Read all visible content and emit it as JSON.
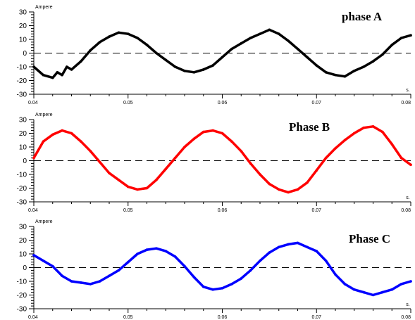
{
  "chart_data": [
    {
      "type": "line",
      "title": "phase A",
      "ylabel": "Ampere",
      "xunit": "s.",
      "xlim": [
        0.04,
        0.08
      ],
      "ylim": [
        -30,
        30
      ],
      "xticks": [
        "0.04",
        "0.05",
        "0.06",
        "0.07",
        "0.08"
      ],
      "yticks": [
        "30",
        "20",
        "10",
        "0",
        "-10",
        "-20",
        "-30"
      ],
      "zero_line": "dashed",
      "series": [
        {
          "color": "#000000",
          "x": [
            0.04,
            0.041,
            0.042,
            0.0425,
            0.043,
            0.0435,
            0.044,
            0.045,
            0.046,
            0.047,
            0.048,
            0.049,
            0.05,
            0.051,
            0.052,
            0.053,
            0.054,
            0.055,
            0.056,
            0.057,
            0.058,
            0.059,
            0.06,
            0.061,
            0.062,
            0.063,
            0.064,
            0.065,
            0.066,
            0.067,
            0.068,
            0.069,
            0.07,
            0.071,
            0.072,
            0.073,
            0.074,
            0.075,
            0.076,
            0.077,
            0.078,
            0.079,
            0.08
          ],
          "y": [
            -10,
            -16,
            -18,
            -14,
            -16,
            -10,
            -12,
            -6,
            2,
            8,
            12,
            15,
            14,
            11,
            6,
            0,
            -5,
            -10,
            -13,
            -14,
            -12,
            -9,
            -3,
            3,
            7,
            11,
            14,
            17,
            14,
            9,
            3,
            -3,
            -9,
            -14,
            -16,
            -17,
            -13,
            -10,
            -6,
            -1,
            6,
            11,
            13
          ]
        }
      ]
    },
    {
      "type": "line",
      "title": "Phase B",
      "ylabel": "Ampere",
      "xunit": "s.",
      "xlim": [
        0.04,
        0.08
      ],
      "ylim": [
        -30,
        30
      ],
      "xticks": [
        "0.04",
        "0.05",
        "0.06",
        "0.07",
        "0.08"
      ],
      "yticks": [
        "30",
        "20",
        "10",
        "0",
        "-10",
        "-20",
        "-30"
      ],
      "zero_line": "dashed",
      "series": [
        {
          "color": "#ff0000",
          "x": [
            0.04,
            0.041,
            0.042,
            0.043,
            0.044,
            0.045,
            0.046,
            0.047,
            0.048,
            0.049,
            0.05,
            0.051,
            0.052,
            0.053,
            0.054,
            0.055,
            0.056,
            0.057,
            0.058,
            0.059,
            0.06,
            0.061,
            0.062,
            0.063,
            0.064,
            0.065,
            0.066,
            0.067,
            0.068,
            0.069,
            0.07,
            0.071,
            0.072,
            0.073,
            0.074,
            0.075,
            0.076,
            0.077,
            0.078,
            0.079,
            0.08
          ],
          "y": [
            2,
            14,
            19,
            22,
            20,
            14,
            7,
            -1,
            -9,
            -14,
            -19,
            -21,
            -20,
            -14,
            -6,
            2,
            10,
            16,
            21,
            22,
            20,
            14,
            7,
            -2,
            -10,
            -17,
            -21,
            -23,
            -21,
            -16,
            -7,
            2,
            9,
            15,
            20,
            24,
            25,
            21,
            12,
            2,
            -3
          ]
        }
      ]
    },
    {
      "type": "line",
      "title": "Phase C",
      "ylabel": "Ampere",
      "xunit": "s.",
      "xlim": [
        0.04,
        0.08
      ],
      "ylim": [
        -30,
        30
      ],
      "xticks": [
        "0.04",
        "0.05",
        "0.06",
        "0.07",
        "0.08"
      ],
      "yticks": [
        "30",
        "20",
        "10",
        "0",
        "-10",
        "-20",
        "-30"
      ],
      "zero_line": "dashed",
      "series": [
        {
          "color": "#0000ff",
          "x": [
            0.04,
            0.041,
            0.042,
            0.043,
            0.044,
            0.045,
            0.046,
            0.047,
            0.048,
            0.049,
            0.05,
            0.051,
            0.052,
            0.053,
            0.054,
            0.055,
            0.056,
            0.057,
            0.058,
            0.059,
            0.06,
            0.061,
            0.062,
            0.063,
            0.064,
            0.065,
            0.066,
            0.067,
            0.068,
            0.069,
            0.07,
            0.071,
            0.072,
            0.073,
            0.074,
            0.075,
            0.076,
            0.077,
            0.078,
            0.079,
            0.08
          ],
          "y": [
            9,
            5,
            1,
            -6,
            -10,
            -11,
            -12,
            -10,
            -6,
            -2,
            4,
            10,
            13,
            14,
            12,
            8,
            1,
            -7,
            -14,
            -16,
            -15,
            -12,
            -8,
            -2,
            5,
            11,
            15,
            17,
            18,
            15,
            12,
            5,
            -5,
            -12,
            -16,
            -18,
            -20,
            -18,
            -16,
            -12,
            -10
          ]
        }
      ]
    }
  ]
}
